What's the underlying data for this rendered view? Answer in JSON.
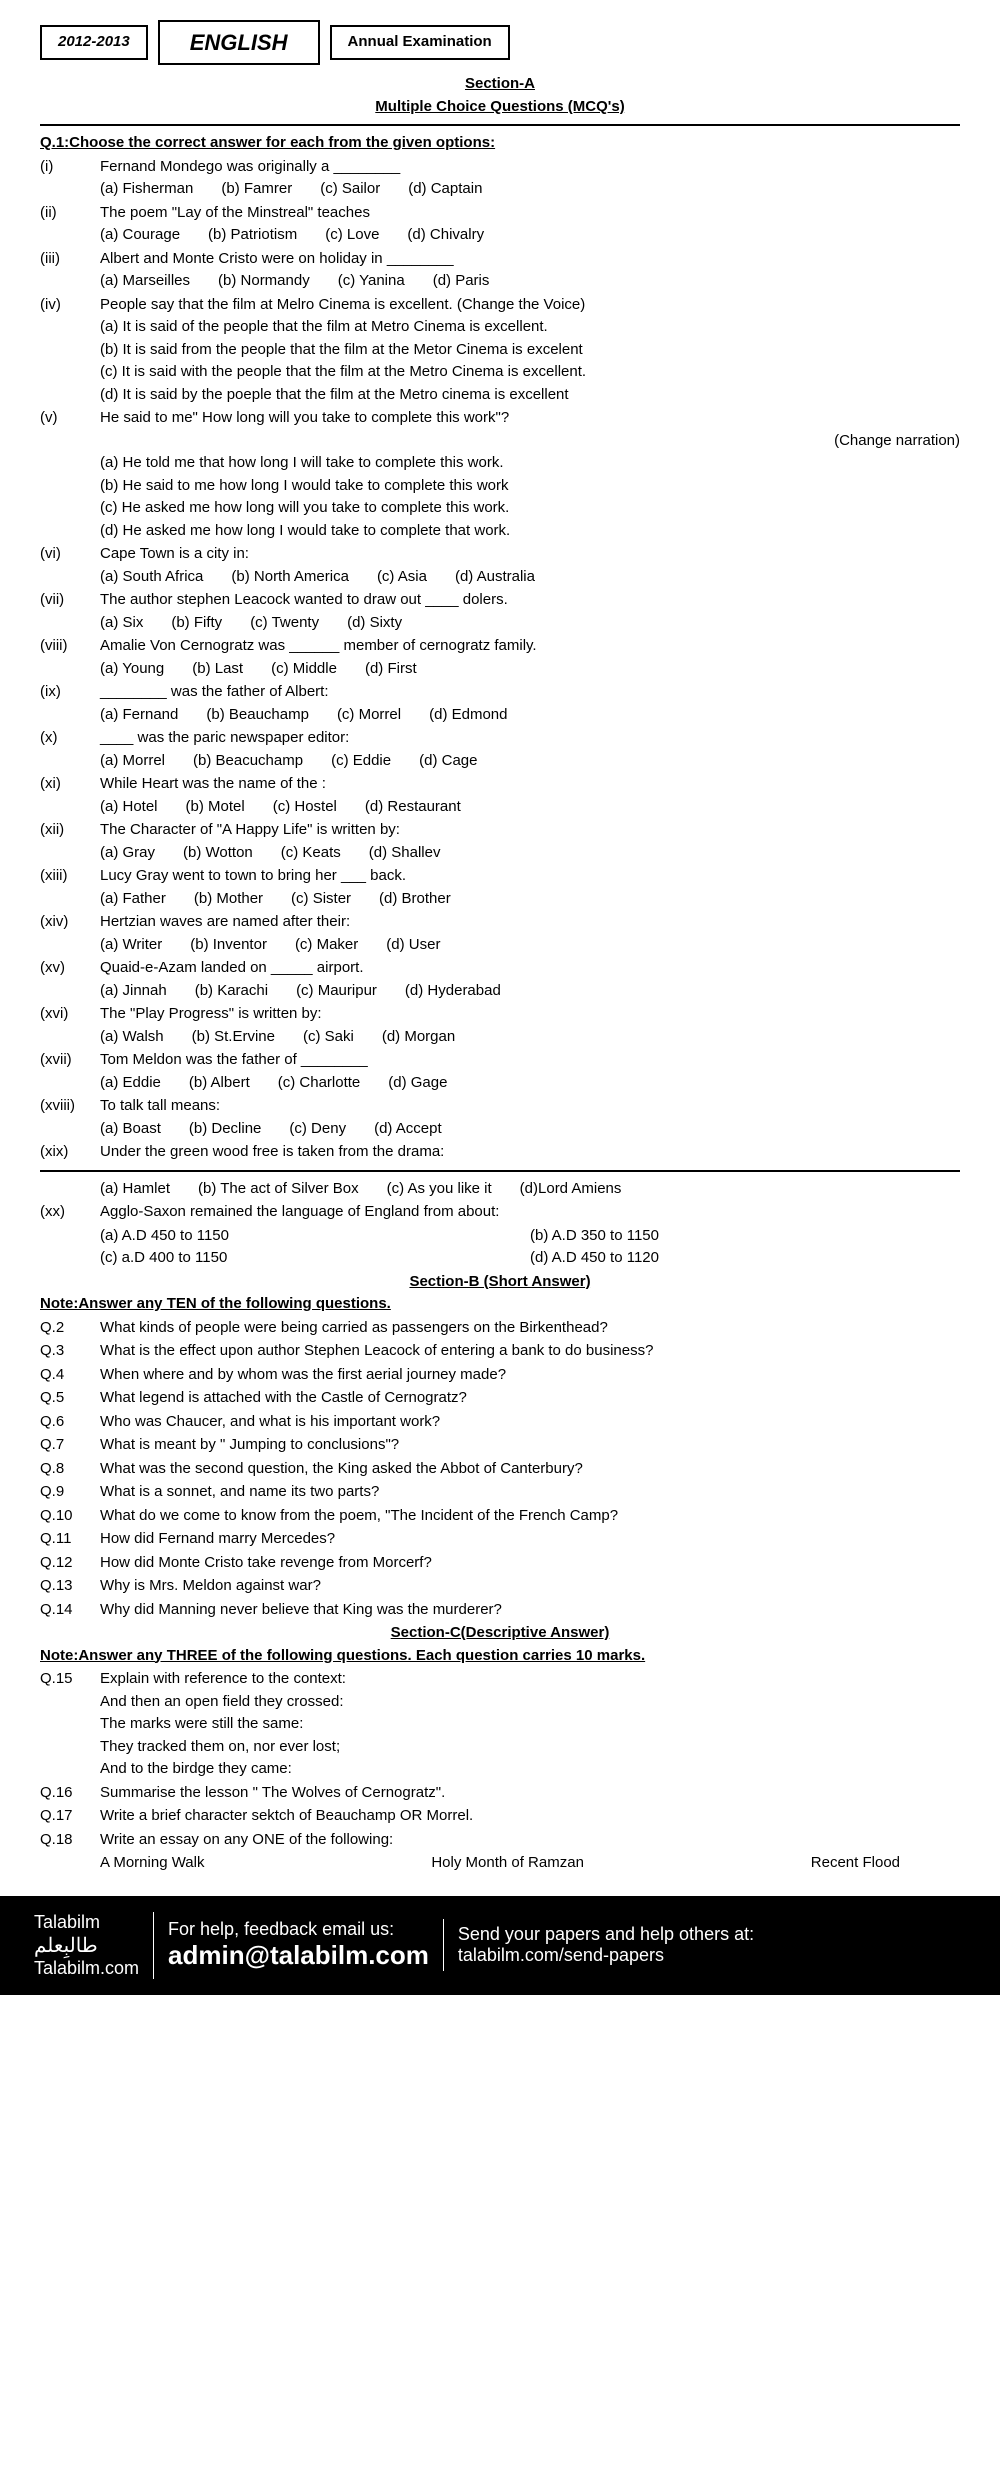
{
  "header": {
    "year": "2012-2013",
    "subject": "ENGLISH",
    "exam": "Annual Examination",
    "sectionA": "Section-A",
    "mcq": "Multiple Choice Questions (MCQ's)"
  },
  "q1_heading": "Q.1:Choose the correct answer for each from the given options:",
  "mcqs": [
    {
      "n": "(i)",
      "q": "Fernand Mondego was originally a ________",
      "opts": [
        "(a) Fisherman",
        "(b) Famrer",
        "(c) Sailor",
        "(d) Captain"
      ]
    },
    {
      "n": "(ii)",
      "q": "The poem \"Lay of the Minstreal\" teaches",
      "opts": [
        "(a) Courage",
        "(b) Patriotism",
        "(c) Love",
        "(d) Chivalry"
      ]
    },
    {
      "n": "(iii)",
      "q": "Albert and Monte Cristo were on holiday in ________",
      "opts": [
        "(a) Marseilles",
        "(b) Normandy",
        "(c) Yanina",
        "(d) Paris"
      ]
    },
    {
      "n": "(iv)",
      "q": "People say that the film at Melro Cinema is excellent. (Change the Voice)",
      "opts": [],
      "lines": [
        "(a) It is said of the people that the film at Metro Cinema is excellent.",
        "(b) It is said from the people that the film at the Metor Cinema is excelent",
        "(c) It is said with the people that the film at the Metro Cinema is excellent.",
        "(d) It is said by the poeple that the film at the Metro cinema is excellent"
      ]
    },
    {
      "n": "(v)",
      "q": "He said to me\" How long will you take to complete this work\"?",
      "extra": "(Change narration)",
      "lines": [
        "(a) He told me that how long I will take to complete this work.",
        "(b) He said to me how long I would take to complete this work",
        "(c) He asked me how long will you take to complete this work.",
        "(d) He asked me how long I would take to complete that work."
      ]
    },
    {
      "n": "(vi)",
      "q": "Cape Town is a city in:",
      "opts": [
        "(a) South Africa",
        "(b) North America",
        "(c) Asia",
        "(d) Australia"
      ]
    },
    {
      "n": "(vii)",
      "q": "The author stephen Leacock wanted to draw out ____ dolers.",
      "opts": [
        "(a) Six",
        "(b) Fifty",
        "(c) Twenty",
        "(d) Sixty"
      ]
    },
    {
      "n": "(viii)",
      "q": "Amalie Von Cernogratz was ______ member of cernogratz family.",
      "opts": [
        "(a) Young",
        "(b) Last",
        "(c) Middle",
        "(d) First"
      ]
    },
    {
      "n": "(ix)",
      "q": "________ was the father of Albert:",
      "opts": [
        "(a) Fernand",
        "(b) Beauchamp",
        "(c) Morrel",
        "(d) Edmond"
      ]
    },
    {
      "n": "(x)",
      "q": "____ was the paric newspaper editor:",
      "opts": [
        "(a) Morrel",
        "(b) Beacuchamp",
        "(c) Eddie",
        "(d) Cage"
      ]
    },
    {
      "n": "(xi)",
      "q": "While Heart was the name of the :",
      "opts": [
        "(a) Hotel",
        "(b) Motel",
        "(c) Hostel",
        "(d) Restaurant"
      ]
    },
    {
      "n": "(xii)",
      "q": "The Character of \"A Happy Life\" is written by:",
      "opts": [
        "(a) Gray",
        "(b) Wotton",
        "(c) Keats",
        "(d) Shallev"
      ]
    },
    {
      "n": "(xiii)",
      "q": "Lucy Gray went to town to bring her ___ back.",
      "opts": [
        "(a) Father",
        "(b) Mother",
        "(c) Sister",
        "(d) Brother"
      ]
    },
    {
      "n": "(xiv)",
      "q": "Hertzian waves are named after their:",
      "opts": [
        "(a) Writer",
        "(b) Inventor",
        "(c) Maker",
        "(d) User"
      ]
    },
    {
      "n": "(xv)",
      "q": "Quaid-e-Azam landed on _____ airport.",
      "opts": [
        "(a) Jinnah",
        "(b) Karachi",
        "(c) Mauripur",
        "(d) Hyderabad"
      ]
    },
    {
      "n": "(xvi)",
      "q": "The \"Play Progress\" is written by:",
      "opts": [
        "(a) Walsh",
        "(b) St.Ervine",
        "(c) Saki",
        "(d) Morgan"
      ]
    },
    {
      "n": "(xvii)",
      "q": "Tom Meldon was the father of ________",
      "opts": [
        "(a) Eddie",
        "(b) Albert",
        "(c) Charlotte",
        "(d) Gage"
      ]
    },
    {
      "n": "(xviii)",
      "q": "To talk tall means:",
      "opts": [
        "(a) Boast",
        "(b) Decline",
        "(c) Deny",
        "(d) Accept"
      ]
    },
    {
      "n": "(xix)",
      "q": "Under the green wood free is taken from the drama:",
      "opts": []
    }
  ],
  "xix_opts": [
    "(a) Hamlet",
    "(b) The act of Silver Box",
    "(c) As you like it",
    "(d)Lord Amiens"
  ],
  "xx": {
    "n": "(xx)",
    "q": "Agglo-Saxon remained the language of England from about:",
    "opts": [
      "(a) A.D 450 to 1150",
      "(b) A.D 350 to 1150",
      "(c) a.D 400 to 1150",
      "(d) A.D 450 to 1120"
    ]
  },
  "sectionB": {
    "title": "Section-B (Short Answer)",
    "note": "Note:Answer any TEN of the following questions.",
    "qs": [
      {
        "n": "Q.2",
        "t": "What kinds of people were being carried as passengers on the Birkenthead?"
      },
      {
        "n": "Q.3",
        "t": "What is the effect upon author Stephen Leacock of entering a bank to do business?"
      },
      {
        "n": "Q.4",
        "t": "When where and by whom was the first aerial journey made?"
      },
      {
        "n": "Q.5",
        "t": "What legend is attached with the Castle of Cernogratz?"
      },
      {
        "n": "Q.6",
        "t": "Who was Chaucer, and what is his important work?"
      },
      {
        "n": "Q.7",
        "t": "What is meant by \" Jumping to conclusions\"?"
      },
      {
        "n": "Q.8",
        "t": "What was the second question, the King asked the Abbot of Canterbury?"
      },
      {
        "n": "Q.9",
        "t": "What is a sonnet, and name its two parts?"
      },
      {
        "n": "Q.10",
        "t": "What do we come to know from the poem, \"The Incident of the French Camp?"
      },
      {
        "n": "Q.11",
        "t": "How did Fernand marry Mercedes?"
      },
      {
        "n": "Q.12",
        "t": "How did Monte Cristo take revenge from Morcerf?"
      },
      {
        "n": "Q.13",
        "t": "Why is Mrs. Meldon against war?"
      },
      {
        "n": "Q.14",
        "t": "Why did Manning never believe that King was the murderer?"
      }
    ]
  },
  "sectionC": {
    "title": "Section-C(Descriptive Answer)",
    "note": "Note:Answer any THREE of the following questions. Each question carries 10 marks.",
    "q15": {
      "n": "Q.15",
      "t": "Explain with reference to the context:",
      "lines": [
        "And then an open field they crossed:",
        "The marks were still the same:",
        "They tracked them on, nor ever lost;",
        "And to the birdge they came:"
      ]
    },
    "qs": [
      {
        "n": "Q.16",
        "t": "Summarise the lesson \" The Wolves of Cernogratz\"."
      },
      {
        "n": "Q.17",
        "t": "Write a brief character sektch of Beauchamp OR Morrel."
      },
      {
        "n": "Q.18",
        "t": "Write an essay on any ONE of the following:"
      }
    ],
    "essays": [
      "A Morning Walk",
      "Holy Month of Ramzan",
      "Recent Flood"
    ]
  },
  "footer": {
    "brand": "Talabilm",
    "brand_ar": "طالبِعلم",
    "site": "Talabilm.com",
    "help": "For help, feedback email us:",
    "email": "admin@talabilm.com",
    "send": "Send your papers and help others at:",
    "send_url": "talabilm.com/send-papers"
  }
}
